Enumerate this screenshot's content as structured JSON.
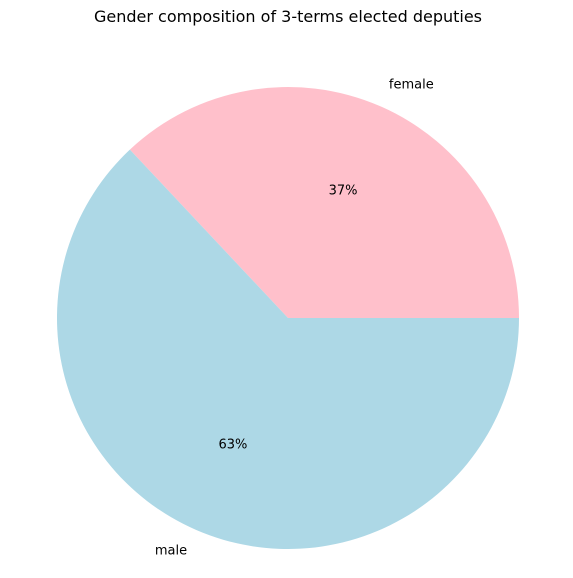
{
  "chart_data": {
    "type": "pie",
    "title": "Gender composition of 3-terms elected deputies",
    "slices": [
      {
        "label": "female",
        "value": 37,
        "pct_label": "37%",
        "color": "#ffc0cb"
      },
      {
        "label": "male",
        "value": 63,
        "pct_label": "63%",
        "color": "#add8e6"
      }
    ],
    "start_angle_deg": 0,
    "direction": "counterclockwise"
  }
}
